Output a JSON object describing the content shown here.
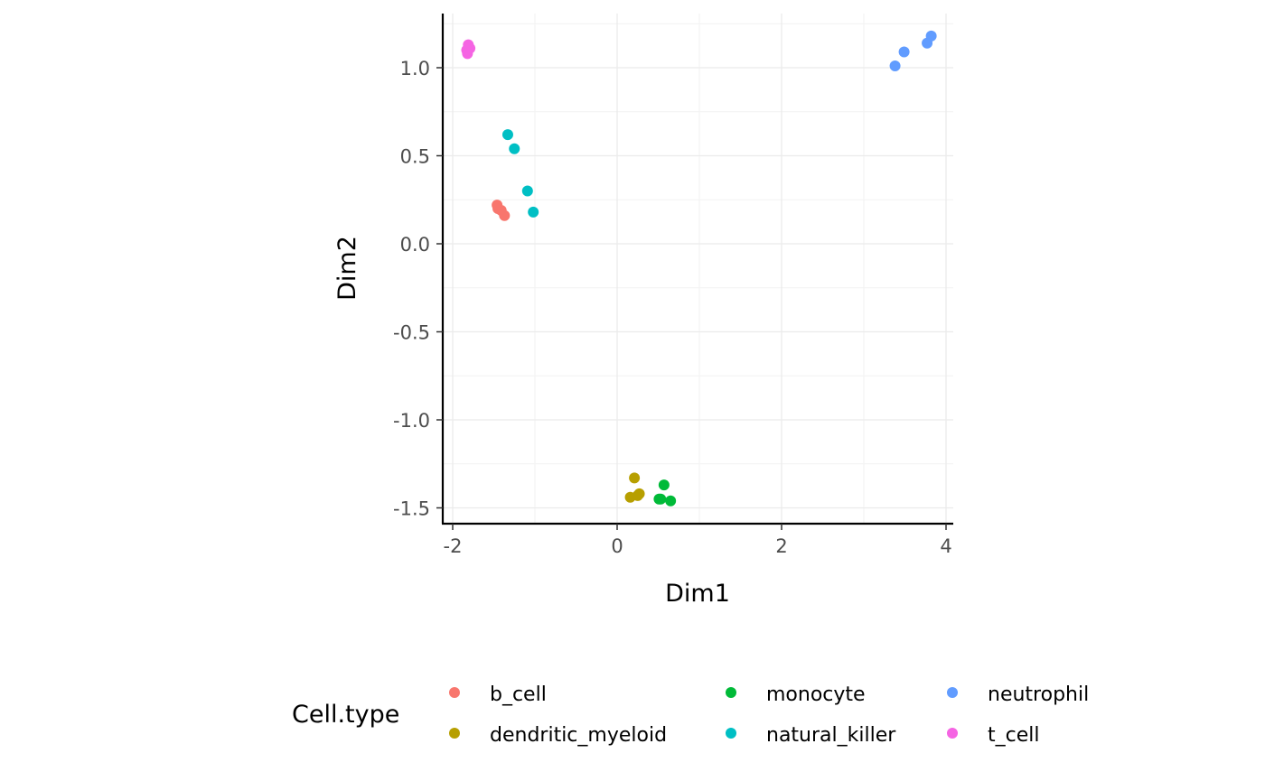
{
  "chart_data": {
    "type": "scatter",
    "xlabel": "Dim1",
    "ylabel": "Dim2",
    "xlim": [
      -2.1,
      4.1
    ],
    "ylim": [
      -1.6,
      1.3
    ],
    "x_ticks": [
      -2,
      0,
      2,
      4
    ],
    "y_ticks": [
      -1.5,
      -1.0,
      -0.5,
      0.0,
      0.5,
      1.0
    ],
    "x_tick_labels": [
      "-2",
      "0",
      "2",
      "4"
    ],
    "y_tick_labels": [
      "-1.5",
      "-1.0",
      "-0.5",
      "0.0",
      "0.5",
      "1.0"
    ],
    "grid": true,
    "legend": {
      "title": "Cell.type",
      "position": "bottom",
      "entries": [
        "b_cell",
        "dendritic_myeloid",
        "monocyte",
        "natural_killer",
        "neutrophil",
        "t_cell"
      ]
    },
    "series": [
      {
        "name": "b_cell",
        "color": "#F8766D",
        "points": [
          [
            -1.46,
            0.22
          ],
          [
            -1.45,
            0.2
          ],
          [
            -1.41,
            0.19
          ],
          [
            -1.37,
            0.16
          ]
        ]
      },
      {
        "name": "dendritic_myeloid",
        "color": "#B79F00",
        "points": [
          [
            0.21,
            -1.33
          ],
          [
            0.16,
            -1.44
          ],
          [
            0.25,
            -1.43
          ],
          [
            0.27,
            -1.42
          ]
        ]
      },
      {
        "name": "monocyte",
        "color": "#00BA38",
        "points": [
          [
            0.57,
            -1.37
          ],
          [
            0.51,
            -1.45
          ],
          [
            0.53,
            -1.45
          ],
          [
            0.65,
            -1.46
          ]
        ]
      },
      {
        "name": "natural_killer",
        "color": "#00BFC4",
        "points": [
          [
            -1.33,
            0.62
          ],
          [
            -1.25,
            0.54
          ],
          [
            -1.09,
            0.3
          ],
          [
            -1.02,
            0.18
          ]
        ]
      },
      {
        "name": "neutrophil",
        "color": "#619CFF",
        "points": [
          [
            3.38,
            1.01
          ],
          [
            3.49,
            1.09
          ],
          [
            3.77,
            1.14
          ],
          [
            3.82,
            1.18
          ]
        ]
      },
      {
        "name": "t_cell",
        "color": "#F564E3",
        "points": [
          [
            -1.83,
            1.1
          ],
          [
            -1.81,
            1.13
          ],
          [
            -1.79,
            1.11
          ],
          [
            -1.82,
            1.08
          ]
        ]
      }
    ]
  }
}
